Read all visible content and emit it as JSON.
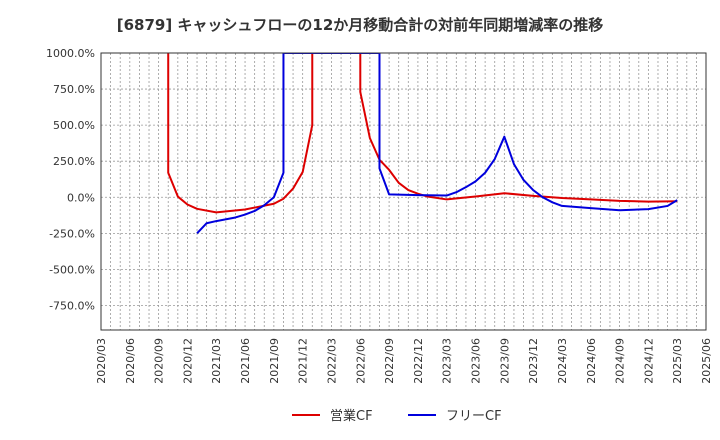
{
  "colors": {
    "operating_cf": "#dd0000",
    "free_cf": "#0000dd",
    "grid": "#999999",
    "axis": "#333333",
    "text": "#333333"
  },
  "chart_data": {
    "type": "line",
    "title": "[6879]  キャッシュフローの12か月移動合計の対前年同期増減率の推移",
    "xlabel": "",
    "ylabel": "",
    "ylim": [
      -920,
      1000
    ],
    "yticks": [
      1000,
      750,
      500,
      250,
      0,
      -250,
      -500,
      -750
    ],
    "ytick_labels": [
      "1000.0%",
      "750.0%",
      "500.0%",
      "250.0%",
      "0.0%",
      "-250.0%",
      "-500.0%",
      "-750.0%"
    ],
    "xlim": [
      "2020/03",
      "2025/06"
    ],
    "xtick_labels": [
      "2020/03",
      "2020/06",
      "2020/09",
      "2020/12",
      "2021/03",
      "2021/06",
      "2021/09",
      "2021/12",
      "2022/03",
      "2022/06",
      "2022/09",
      "2022/12",
      "2023/03",
      "2023/06",
      "2023/09",
      "2023/12",
      "2024/03",
      "2024/06",
      "2024/09",
      "2024/12",
      "2025/03",
      "2025/06"
    ],
    "grid": true,
    "legend_position": "bottom",
    "series": [
      {
        "name": "営業CF",
        "color": "#dd0000",
        "points": [
          [
            "2020/10",
            1000
          ],
          [
            "2020/10",
            170
          ],
          [
            "2020/11",
            5
          ],
          [
            "2020/12",
            -50
          ],
          [
            "2021/01",
            -80
          ],
          [
            "2021/03",
            -105
          ],
          [
            "2021/06",
            -85
          ],
          [
            "2021/09",
            -45
          ],
          [
            "2021/10",
            -10
          ],
          [
            "2021/11",
            60
          ],
          [
            "2021/12",
            175
          ],
          [
            "2022/01",
            500
          ],
          [
            "2022/01",
            1000
          ],
          [
            "2022/06",
            1000
          ],
          [
            "2022/06",
            730
          ],
          [
            "2022/07",
            410
          ],
          [
            "2022/08",
            260
          ],
          [
            "2022/09",
            190
          ],
          [
            "2022/10",
            100
          ],
          [
            "2022/11",
            50
          ],
          [
            "2022/12",
            25
          ],
          [
            "2023/01",
            5
          ],
          [
            "2023/03",
            -15
          ],
          [
            "2023/06",
            5
          ],
          [
            "2023/09",
            28
          ],
          [
            "2023/12",
            10
          ],
          [
            "2024/03",
            -5
          ],
          [
            "2024/06",
            -15
          ],
          [
            "2024/09",
            -25
          ],
          [
            "2024/12",
            -30
          ],
          [
            "2025/03",
            -28
          ]
        ]
      },
      {
        "name": "フリーCF",
        "color": "#0000dd",
        "points": [
          [
            "2021/01",
            -250
          ],
          [
            "2021/02",
            -180
          ],
          [
            "2021/03",
            -165
          ],
          [
            "2021/05",
            -140
          ],
          [
            "2021/06",
            -120
          ],
          [
            "2021/07",
            -95
          ],
          [
            "2021/08",
            -55
          ],
          [
            "2021/09",
            0
          ],
          [
            "2021/10",
            170
          ],
          [
            "2021/10",
            1000
          ],
          [
            "2022/08",
            1000
          ],
          [
            "2022/08",
            200
          ],
          [
            "2022/09",
            20
          ],
          [
            "2022/12",
            15
          ],
          [
            "2023/03",
            12
          ],
          [
            "2023/04",
            35
          ],
          [
            "2023/05",
            70
          ],
          [
            "2023/06",
            110
          ],
          [
            "2023/07",
            170
          ],
          [
            "2023/08",
            265
          ],
          [
            "2023/09",
            420
          ],
          [
            "2023/10",
            230
          ],
          [
            "2023/11",
            120
          ],
          [
            "2023/12",
            50
          ],
          [
            "2024/01",
            0
          ],
          [
            "2024/02",
            -35
          ],
          [
            "2024/03",
            -60
          ],
          [
            "2024/06",
            -75
          ],
          [
            "2024/09",
            -90
          ],
          [
            "2024/12",
            -82
          ],
          [
            "2025/02",
            -60
          ],
          [
            "2025/03",
            -20
          ]
        ]
      }
    ]
  }
}
